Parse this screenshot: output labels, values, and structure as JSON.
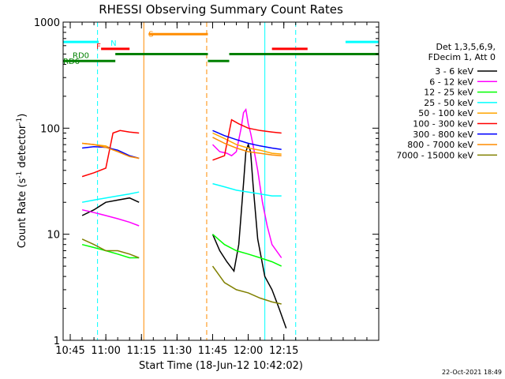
{
  "chart_data": {
    "type": "line",
    "title": "RHESSI Observing Summary Count Rates",
    "xlabel": "Start Time (18-Jun-12 10:42:02)",
    "ylabel_main": "Count Rate (s",
    "ylabel_sup1": "-1",
    "ylabel_mid": " detector",
    "ylabel_sup2": "-1",
    "ylabel_end": ")",
    "yscale": "log",
    "ylim": [
      1,
      1000
    ],
    "xlim_minutes": [
      42,
      175
    ],
    "x_ticks": [
      {
        "minute": 45,
        "label": "10:45"
      },
      {
        "minute": 60,
        "label": "11:00"
      },
      {
        "minute": 75,
        "label": "11:15"
      },
      {
        "minute": 90,
        "label": "11:30"
      },
      {
        "minute": 105,
        "label": "11:45"
      },
      {
        "minute": 120,
        "label": "12:00"
      },
      {
        "minute": 135,
        "label": "12:15"
      }
    ],
    "y_ticks": [
      {
        "value": 1,
        "label": "1"
      },
      {
        "value": 10,
        "label": "10"
      },
      {
        "value": 100,
        "label": "100"
      },
      {
        "value": 1000,
        "label": "1000"
      }
    ],
    "legend_header": [
      "Det 1,3,5,6,9,",
      "FDecim 1, Att 0"
    ],
    "legend_position": "right",
    "series": [
      {
        "name": "3 - 6 keV",
        "color": "#000000",
        "segments": [
          {
            "x": [
              50,
              55,
              60,
              65,
              70,
              74
            ],
            "y": [
              15,
              17,
              20,
              21,
              22,
              20
            ]
          },
          {
            "x": [
              105,
              108,
              111,
              114,
              116,
              118,
              119,
              120,
              121,
              122,
              124,
              127,
              130,
              133,
              136
            ],
            "y": [
              10,
              7,
              5.5,
              4.5,
              8,
              30,
              60,
              70,
              60,
              30,
              9,
              4,
              3,
              2,
              1.3
            ]
          }
        ]
      },
      {
        "name": "6 - 12 keV",
        "color": "#ff00ff",
        "segments": [
          {
            "x": [
              50,
              55,
              60,
              65,
              70,
              74
            ],
            "y": [
              17,
              16,
              15,
              14,
              13,
              12
            ]
          },
          {
            "x": [
              105,
              108,
              111,
              113,
              115,
              117,
              118,
              119,
              120,
              121,
              122,
              124,
              126,
              128,
              130,
              134
            ],
            "y": [
              70,
              60,
              58,
              55,
              60,
              100,
              140,
              150,
              110,
              90,
              70,
              40,
              20,
              12,
              8,
              6
            ]
          }
        ]
      },
      {
        "name": "12 - 25 keV",
        "color": "#00ff00",
        "segments": [
          {
            "x": [
              50,
              55,
              60,
              65,
              70,
              74
            ],
            "y": [
              8,
              7.5,
              7,
              6.5,
              6,
              6
            ]
          },
          {
            "x": [
              105,
              110,
              115,
              120,
              125,
              130,
              134
            ],
            "y": [
              10,
              8,
              7,
              6.5,
              6,
              5.5,
              5
            ]
          }
        ]
      },
      {
        "name": "25 - 50 keV",
        "color": "#00ffff",
        "segments": [
          {
            "x": [
              50,
              55,
              60,
              65,
              70,
              74
            ],
            "y": [
              20,
              21,
              22,
              23,
              24,
              25
            ]
          },
          {
            "x": [
              105,
              110,
              115,
              120,
              125,
              130,
              134
            ],
            "y": [
              30,
              28,
              26,
              25,
              24,
              23,
              23
            ]
          }
        ]
      },
      {
        "name": "50 - 100 keV",
        "color": "#ffa500",
        "segments": [
          {
            "x": [
              50,
              55,
              60,
              65,
              70,
              74
            ],
            "y": [
              72,
              70,
              68,
              60,
              55,
              52
            ]
          },
          {
            "x": [
              105,
              110,
              115,
              120,
              125,
              130,
              134
            ],
            "y": [
              90,
              80,
              70,
              65,
              62,
              58,
              57
            ]
          }
        ]
      },
      {
        "name": "100 - 300 keV",
        "color": "#ff0000",
        "segments": [
          {
            "x": [
              50,
              55,
              60,
              63,
              66,
              70,
              74
            ],
            "y": [
              35,
              38,
              42,
              90,
              95,
              92,
              90
            ]
          },
          {
            "x": [
              105,
              110,
              113,
              116,
              120,
              125,
              130,
              134
            ],
            "y": [
              50,
              55,
              120,
              110,
              100,
              95,
              92,
              90
            ]
          }
        ]
      },
      {
        "name": "300 - 800 keV",
        "color": "#0000ff",
        "segments": [
          {
            "x": [
              50,
              55,
              60,
              65,
              70,
              74
            ],
            "y": [
              65,
              67,
              66,
              62,
              55,
              52
            ]
          },
          {
            "x": [
              105,
              110,
              115,
              120,
              125,
              130,
              134
            ],
            "y": [
              95,
              85,
              78,
              72,
              68,
              65,
              63
            ]
          }
        ]
      },
      {
        "name": "800 - 7000 keV",
        "color": "#ff8c00",
        "segments": [
          {
            "x": [
              50,
              55,
              60,
              65,
              70,
              74
            ],
            "y": [
              72,
              70,
              66,
              60,
              54,
              52
            ]
          },
          {
            "x": [
              105,
              110,
              115,
              120,
              125,
              130,
              134
            ],
            "y": [
              82,
              72,
              65,
              60,
              58,
              56,
              55
            ]
          }
        ]
      },
      {
        "name": "7000 - 15000 keV",
        "color": "#808000",
        "segments": [
          {
            "x": [
              50,
              55,
              60,
              65,
              70,
              74
            ],
            "y": [
              9,
              8,
              7,
              7,
              6.5,
              6
            ]
          },
          {
            "x": [
              105,
              110,
              115,
              120,
              125,
              130,
              134
            ],
            "y": [
              5,
              3.5,
              3,
              2.8,
              2.5,
              2.3,
              2.2
            ]
          }
        ]
      }
    ],
    "flags": [
      {
        "label": "N",
        "color": "#00ffff",
        "label_minute": 62,
        "label_value": 640,
        "bars": [
          {
            "start": 42,
            "end": 57,
            "value": 650
          },
          {
            "start": 161,
            "end": 175,
            "value": 650
          }
        ]
      },
      {
        "label": "S",
        "color": "#ff8c00",
        "label_minute": 78,
        "label_value": 780,
        "bars": [
          {
            "start": 78,
            "end": 103,
            "value": 770
          }
        ]
      },
      {
        "label": "F",
        "color": "#ff0000",
        "label_minute": 56,
        "label_value": 600,
        "bars": [
          {
            "start": 58,
            "end": 70,
            "value": 560
          },
          {
            "start": 130,
            "end": 145,
            "value": 560
          }
        ]
      },
      {
        "label": "RD0",
        "color": "#008000",
        "label_minute": 46,
        "label_value": 490,
        "bars": [
          {
            "start": 64,
            "end": 103,
            "value": 500
          },
          {
            "start": 112,
            "end": 175,
            "value": 500
          }
        ]
      },
      {
        "label": "RD6",
        "color": "#008000",
        "label_minute": 42,
        "label_value": 430,
        "bars": [
          {
            "start": 42,
            "end": 64,
            "value": 430
          },
          {
            "start": 103,
            "end": 112,
            "value": 430
          }
        ]
      }
    ],
    "vertical_lines": [
      {
        "minute": 42,
        "color": "#00ffff",
        "style": "solid"
      },
      {
        "minute": 56.5,
        "color": "#00ffff",
        "style": "dashed"
      },
      {
        "minute": 76,
        "color": "#ff8c00",
        "style": "solid"
      },
      {
        "minute": 102.5,
        "color": "#ff8c00",
        "style": "dashed"
      },
      {
        "minute": 127,
        "color": "#00ffff",
        "style": "solid"
      },
      {
        "minute": 140,
        "color": "#00ffff",
        "style": "dashed"
      }
    ],
    "timestamp": "22-Oct-2021 18:49"
  }
}
